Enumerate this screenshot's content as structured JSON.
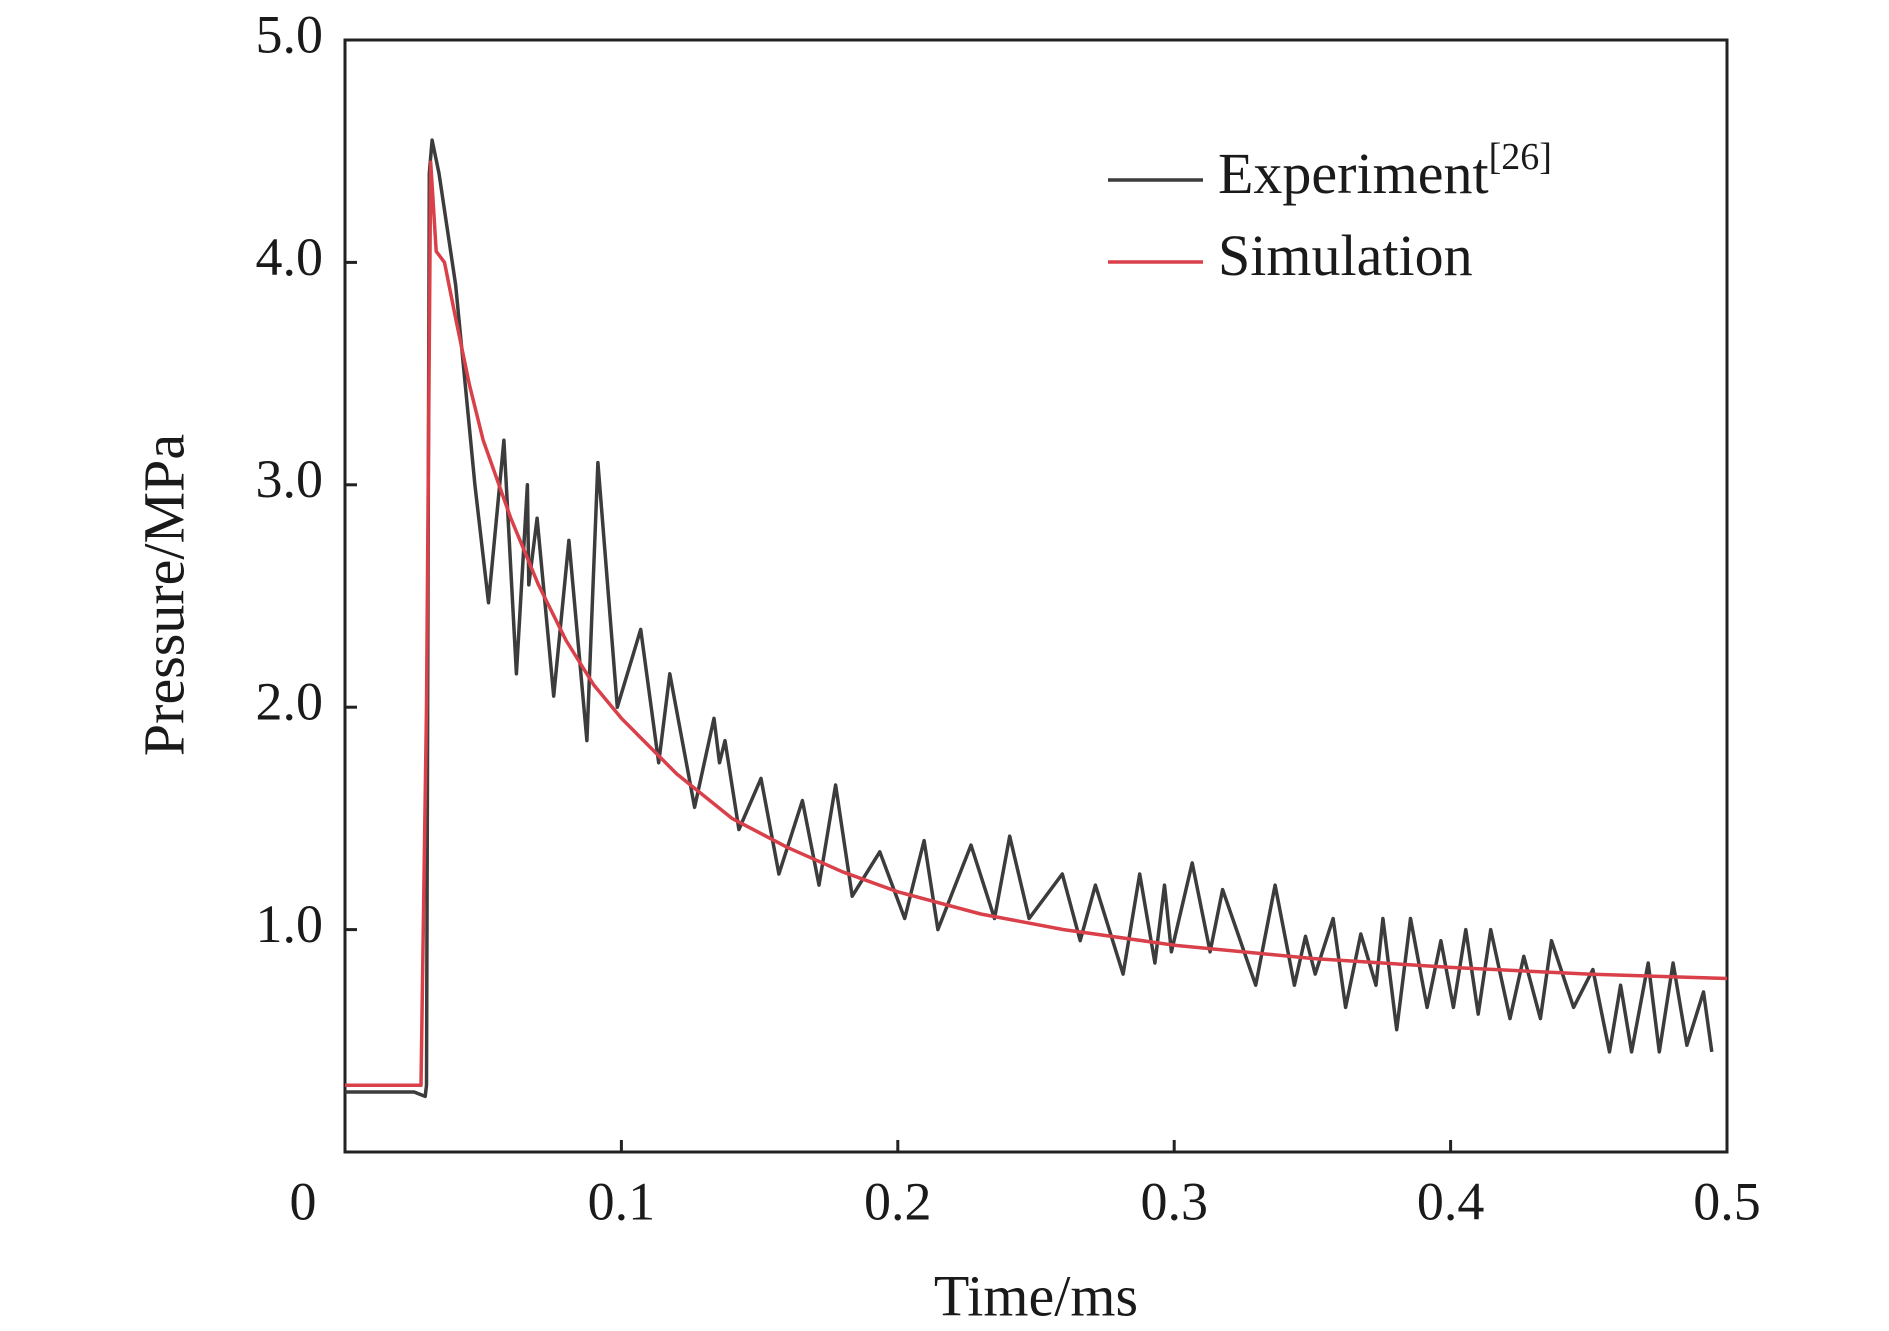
{
  "chart_data": {
    "type": "line",
    "xlabel": "Time/ms",
    "ylabel": "Pressure/MPa",
    "xlim": [
      0,
      0.5
    ],
    "ylim": [
      0,
      5
    ],
    "xticks": [
      0,
      0.1,
      0.2,
      0.3,
      0.4,
      0.5
    ],
    "yticks": [
      {
        "value": 1,
        "label": "1.0"
      },
      {
        "value": 2,
        "label": "2.0"
      },
      {
        "value": 3,
        "label": "3.0"
      },
      {
        "value": 4,
        "label": "4.0"
      },
      {
        "value": 5,
        "label": "5.0"
      }
    ],
    "legend": "upper right",
    "series": [
      {
        "name": "Experiment",
        "name_sup": "[26]",
        "color": "#3c3c3c",
        "x": [
          0,
          0.02,
          0.025,
          0.029,
          0.0295,
          0.0305,
          0.0315,
          0.034,
          0.04,
          0.047,
          0.0519,
          0.0575,
          0.062,
          0.066,
          0.0665,
          0.0695,
          0.0755,
          0.081,
          0.0875,
          0.0915,
          0.0985,
          0.107,
          0.1135,
          0.1175,
          0.1265,
          0.1335,
          0.1355,
          0.1375,
          0.1425,
          0.1505,
          0.157,
          0.1655,
          0.1715,
          0.1775,
          0.1835,
          0.1935,
          0.2025,
          0.2095,
          0.2145,
          0.2265,
          0.235,
          0.2405,
          0.2475,
          0.2595,
          0.266,
          0.2715,
          0.2815,
          0.2875,
          0.293,
          0.2965,
          0.299,
          0.3065,
          0.313,
          0.3175,
          0.3295,
          0.3365,
          0.3435,
          0.3475,
          0.351,
          0.3575,
          0.362,
          0.3675,
          0.373,
          0.3755,
          0.3805,
          0.3855,
          0.3915,
          0.3965,
          0.401,
          0.4055,
          0.41,
          0.4145,
          0.4215,
          0.4265,
          0.4325,
          0.4365,
          0.4445,
          0.4515,
          0.4575,
          0.4615,
          0.4655,
          0.4715,
          0.4755,
          0.4805,
          0.4855,
          0.4915,
          0.4945
        ],
        "values": [
          0.27,
          0.27,
          0.27,
          0.25,
          0.3,
          4.4,
          4.55,
          4.4,
          3.9,
          3.0,
          2.47,
          3.2,
          2.15,
          3.0,
          2.55,
          2.85,
          2.05,
          2.75,
          1.85,
          3.1,
          2.0,
          2.35,
          1.75,
          2.15,
          1.55,
          1.95,
          1.75,
          1.85,
          1.45,
          1.68,
          1.25,
          1.58,
          1.2,
          1.65,
          1.15,
          1.35,
          1.05,
          1.4,
          1.0,
          1.38,
          1.05,
          1.42,
          1.05,
          1.25,
          0.95,
          1.2,
          0.8,
          1.25,
          0.85,
          1.2,
          0.9,
          1.3,
          0.9,
          1.18,
          0.75,
          1.2,
          0.75,
          0.97,
          0.8,
          1.05,
          0.65,
          0.98,
          0.75,
          1.05,
          0.55,
          1.05,
          0.65,
          0.95,
          0.65,
          1.0,
          0.62,
          1.0,
          0.6,
          0.88,
          0.6,
          0.95,
          0.65,
          0.82,
          0.45,
          0.75,
          0.45,
          0.85,
          0.45,
          0.85,
          0.48,
          0.72,
          0.45
        ]
      },
      {
        "name": "Simulation",
        "color": "#d9404a",
        "x": [
          0,
          0.0275,
          0.0295,
          0.031,
          0.033,
          0.036,
          0.04,
          0.045,
          0.05,
          0.06,
          0.07,
          0.08,
          0.09,
          0.1,
          0.12,
          0.14,
          0.16,
          0.18,
          0.2,
          0.23,
          0.26,
          0.3,
          0.35,
          0.4,
          0.45,
          0.5
        ],
        "values": [
          0.3,
          0.3,
          2.0,
          4.45,
          4.05,
          4.0,
          3.75,
          3.45,
          3.2,
          2.85,
          2.55,
          2.3,
          2.1,
          1.95,
          1.7,
          1.5,
          1.37,
          1.26,
          1.17,
          1.07,
          1.0,
          0.93,
          0.87,
          0.83,
          0.8,
          0.78
        ]
      }
    ]
  }
}
